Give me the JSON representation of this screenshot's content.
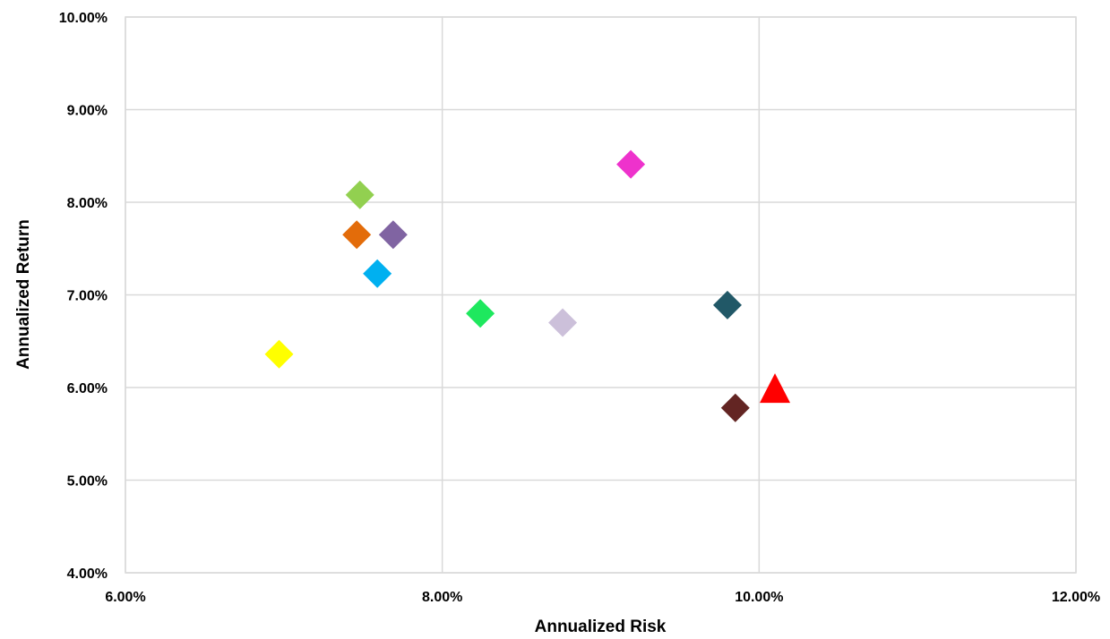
{
  "chart_data": {
    "type": "scatter",
    "title": "",
    "xlabel": "Annualized Risk",
    "ylabel": "Annualized Return",
    "xlim": [
      0.06,
      0.12
    ],
    "ylim": [
      0.04,
      0.1
    ],
    "x_ticks": [
      {
        "value": 0.06,
        "label": "6.00%"
      },
      {
        "value": 0.08,
        "label": "8.00%"
      },
      {
        "value": 0.1,
        "label": "10.00%"
      },
      {
        "value": 0.12,
        "label": "12.00%"
      }
    ],
    "y_ticks": [
      {
        "value": 0.04,
        "label": "4.00%"
      },
      {
        "value": 0.05,
        "label": "5.00%"
      },
      {
        "value": 0.06,
        "label": "6.00%"
      },
      {
        "value": 0.07,
        "label": "7.00%"
      },
      {
        "value": 0.08,
        "label": "8.00%"
      },
      {
        "value": 0.09,
        "label": "9.00%"
      },
      {
        "value": 0.1,
        "label": "10.00%"
      }
    ],
    "grid": true,
    "legend": "none",
    "points": [
      {
        "x": 0.0697,
        "y": 0.0636,
        "color": "#FFFF00",
        "marker": "diamond"
      },
      {
        "x": 0.0748,
        "y": 0.0808,
        "color": "#92D050",
        "marker": "diamond"
      },
      {
        "x": 0.0746,
        "y": 0.0765,
        "color": "#E36C0A",
        "marker": "diamond"
      },
      {
        "x": 0.0769,
        "y": 0.0765,
        "color": "#8064A2",
        "marker": "diamond"
      },
      {
        "x": 0.0759,
        "y": 0.0723,
        "color": "#00B0F0",
        "marker": "diamond"
      },
      {
        "x": 0.0824,
        "y": 0.068,
        "color": "#1EE85E",
        "marker": "diamond"
      },
      {
        "x": 0.0876,
        "y": 0.067,
        "color": "#CCC0DA",
        "marker": "diamond"
      },
      {
        "x": 0.0919,
        "y": 0.0841,
        "color": "#EE32CC",
        "marker": "diamond"
      },
      {
        "x": 0.098,
        "y": 0.0689,
        "color": "#215867",
        "marker": "diamond"
      },
      {
        "x": 0.0985,
        "y": 0.0578,
        "color": "#632523",
        "marker": "diamond"
      },
      {
        "x": 0.101,
        "y": 0.0597,
        "color": "#FF0000",
        "marker": "triangle"
      }
    ]
  }
}
